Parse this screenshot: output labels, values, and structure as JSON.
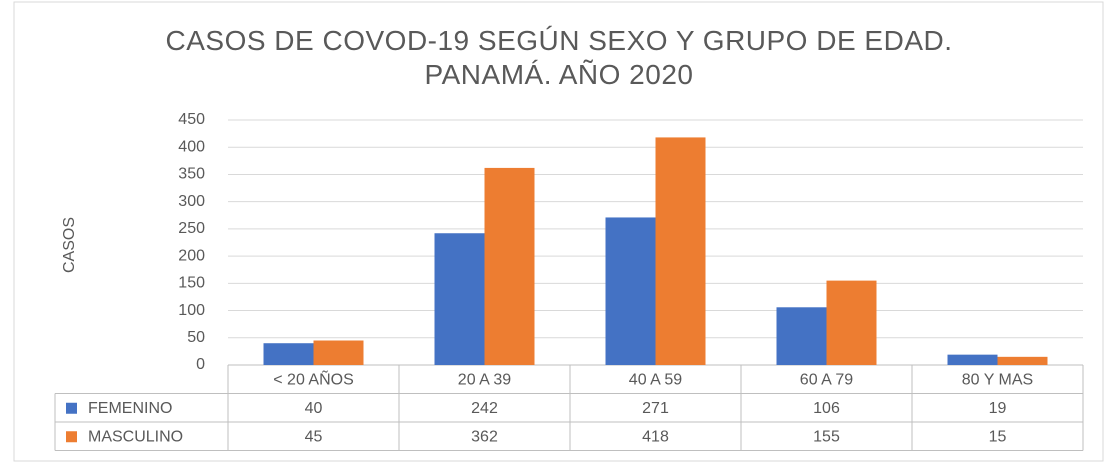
{
  "chart_data": {
    "type": "bar",
    "title": "CASOS DE COVOD-19 SEGÚN SEXO Y GRUPO DE EDAD. PANAMÁ. AÑO 2020",
    "y_label": "CASOS",
    "categories": [
      "< 20 AÑOS",
      "20 A 39",
      "40 A 59",
      "60 A 79",
      "80 Y MAS"
    ],
    "series": [
      {
        "name": "FEMENINO",
        "color": "#4472c4",
        "values": [
          40,
          242,
          271,
          106,
          19
        ]
      },
      {
        "name": "MASCULINO",
        "color": "#ed7d31",
        "values": [
          45,
          362,
          418,
          155,
          15
        ]
      }
    ],
    "ylim": [
      0,
      450
    ],
    "yticks": [
      0,
      50,
      100,
      150,
      200,
      250,
      300,
      350,
      400,
      450
    ],
    "grid": true,
    "legend": "data-table"
  }
}
